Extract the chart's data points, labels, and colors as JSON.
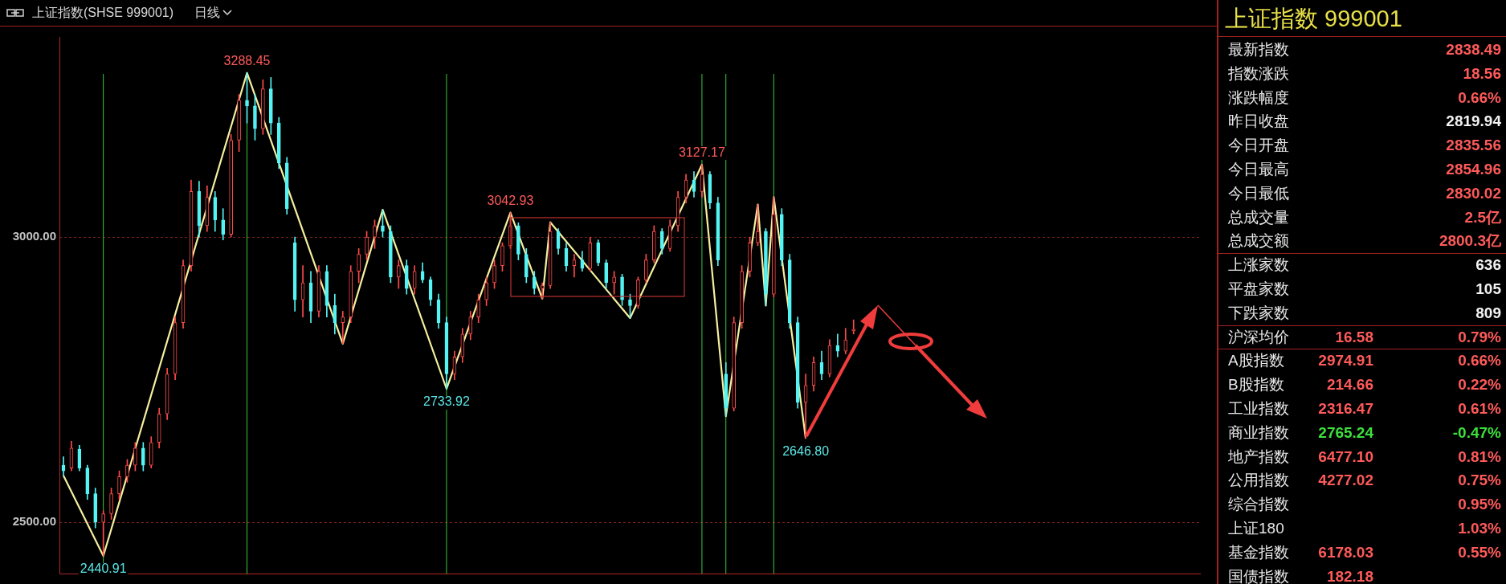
{
  "chart_data": [
    {
      "type": "candlestick",
      "title": "上证指数(SHSE 999001)",
      "subtitle": "日线",
      "categories": [
        null,
        null,
        null,
        null,
        null,
        null,
        null,
        null,
        null,
        null,
        null,
        null,
        null,
        null,
        null,
        null,
        null,
        null,
        null,
        null,
        null,
        null,
        null,
        null,
        null,
        null,
        null,
        null,
        null,
        null,
        null,
        null,
        null,
        null,
        null,
        null,
        null,
        null,
        null,
        null,
        null,
        null,
        null,
        null,
        null,
        null,
        null,
        null,
        null,
        null,
        null,
        null,
        null,
        null,
        null,
        null,
        null,
        null,
        null,
        null,
        null,
        null,
        null,
        null,
        null,
        null,
        null,
        null,
        null,
        null,
        null,
        null,
        null,
        null,
        null,
        null,
        null,
        null,
        null,
        null,
        null,
        null,
        null,
        null,
        null,
        null,
        null,
        null,
        null,
        null,
        null,
        null,
        null,
        null,
        null,
        null,
        null,
        null,
        null,
        null,
        null,
        null,
        null,
        null,
        null,
        null,
        null,
        null,
        null,
        null,
        null,
        null,
        null,
        null,
        null,
        null,
        null,
        null,
        null,
        null,
        null,
        null,
        null,
        null,
        null,
        null,
        null,
        null,
        null,
        null,
        null,
        null,
        null,
        null,
        null,
        null,
        null,
        null,
        null,
        null,
        null,
        null,
        null
      ],
      "ohlc": [
        [
          2600,
          2615,
          2582,
          2590
        ],
        [
          2595,
          2642,
          2590,
          2630
        ],
        [
          2628,
          2635,
          2590,
          2595
        ],
        [
          2595,
          2600,
          2540,
          2550
        ],
        [
          2550,
          2560,
          2490,
          2500
        ],
        [
          2500,
          2520,
          2440.91,
          2515
        ],
        [
          2515,
          2560,
          2505,
          2550
        ],
        [
          2550,
          2590,
          2540,
          2580
        ],
        [
          2580,
          2610,
          2570,
          2600
        ],
        [
          2600,
          2640,
          2590,
          2630
        ],
        [
          2630,
          2640,
          2590,
          2600
        ],
        [
          2600,
          2650,
          2595,
          2640
        ],
        [
          2640,
          2700,
          2630,
          2690
        ],
        [
          2690,
          2770,
          2680,
          2760
        ],
        [
          2760,
          2860,
          2750,
          2850
        ],
        [
          2850,
          2960,
          2840,
          2950
        ],
        [
          2950,
          3100,
          2940,
          3080
        ],
        [
          3080,
          3098,
          3000,
          3020
        ],
        [
          3020,
          3090,
          3010,
          3070
        ],
        [
          3070,
          3080,
          3010,
          3030
        ],
        [
          3030,
          3050,
          2995,
          3005
        ],
        [
          3005,
          3180,
          3000,
          3170
        ],
        [
          3170,
          3250,
          3150,
          3240
        ],
        [
          3240,
          3288.45,
          3200,
          3230
        ],
        [
          3230,
          3250,
          3170,
          3190
        ],
        [
          3190,
          3276,
          3180,
          3260
        ],
        [
          3260,
          3280,
          3180,
          3200
        ],
        [
          3200,
          3210,
          3120,
          3130
        ],
        [
          3130,
          3140,
          3040,
          3050
        ],
        [
          2990,
          3000,
          2870,
          2890
        ],
        [
          2890,
          2950,
          2860,
          2920
        ],
        [
          2920,
          2940,
          2850,
          2870
        ],
        [
          2870,
          2950,
          2860,
          2940
        ],
        [
          2940,
          2950,
          2860,
          2880
        ],
        [
          2880,
          2900,
          2830,
          2850
        ],
        [
          2850,
          2870,
          2813,
          2860
        ],
        [
          2860,
          2950,
          2850,
          2940
        ],
        [
          2940,
          2980,
          2920,
          2970
        ],
        [
          2970,
          3010,
          2960,
          3000
        ],
        [
          3000,
          3030,
          2980,
          3020
        ],
        [
          3020,
          3048,
          3000,
          3010
        ],
        [
          3010,
          3020,
          2920,
          2930
        ],
        [
          2930,
          2960,
          2910,
          2950
        ],
        [
          2950,
          2960,
          2900,
          2910
        ],
        [
          2910,
          2950,
          2900,
          2940
        ],
        [
          2940,
          2955,
          2920,
          2925
        ],
        [
          2925,
          2930,
          2880,
          2890
        ],
        [
          2890,
          2900,
          2840,
          2850
        ],
        [
          2850,
          2860,
          2733.92,
          2760
        ],
        [
          2760,
          2800,
          2750,
          2790
        ],
        [
          2790,
          2840,
          2780,
          2830
        ],
        [
          2830,
          2870,
          2820,
          2860
        ],
        [
          2860,
          2900,
          2850,
          2890
        ],
        [
          2890,
          2930,
          2880,
          2920
        ],
        [
          2920,
          2960,
          2910,
          2950
        ],
        [
          2950,
          2990,
          2940,
          2985
        ],
        [
          2985,
          3042.93,
          2980,
          3020
        ],
        [
          3020,
          3025,
          2960,
          2970
        ],
        [
          2970,
          2980,
          2920,
          2930
        ],
        [
          2930,
          2940,
          2900,
          2910
        ],
        [
          2910,
          2920,
          2892,
          2915
        ],
        [
          2915,
          3026,
          2910,
          3010
        ],
        [
          3010,
          3015,
          2970,
          2980
        ],
        [
          2980,
          2990,
          2940,
          2950
        ],
        [
          2950,
          2970,
          2930,
          2960
        ],
        [
          2960,
          2975,
          2940,
          2945
        ],
        [
          2945,
          3000,
          2940,
          2990
        ],
        [
          2990,
          2995,
          2950,
          2955
        ],
        [
          2955,
          2960,
          2910,
          2920
        ],
        [
          2920,
          2940,
          2900,
          2930
        ],
        [
          2930,
          2935,
          2880,
          2890
        ],
        [
          2890,
          2900,
          2858,
          2880
        ],
        [
          2880,
          2930,
          2875,
          2925
        ],
        [
          2925,
          2970,
          2920,
          2960
        ],
        [
          2960,
          3020,
          2955,
          3010
        ],
        [
          3010,
          3015,
          2970,
          2980
        ],
        [
          2980,
          3030,
          2975,
          3020
        ],
        [
          3020,
          3080,
          3010,
          3070
        ],
        [
          3070,
          3110,
          3060,
          3100
        ],
        [
          3100,
          3115,
          3070,
          3080
        ],
        [
          3080,
          3127.17,
          3070,
          3110
        ],
        [
          3110,
          3115,
          3050,
          3060
        ],
        [
          3060,
          3070,
          2950,
          2960
        ],
        [
          2760,
          2780,
          2686,
          2700
        ],
        [
          2700,
          2860,
          2695,
          2850
        ],
        [
          2850,
          2950,
          2840,
          2940
        ],
        [
          2940,
          3000,
          2930,
          2990
        ],
        [
          2990,
          3057,
          2985,
          3010
        ],
        [
          3010,
          3015,
          2880,
          2900
        ],
        [
          2900,
          3070,
          2895,
          3040
        ],
        [
          3040,
          3050,
          2950,
          2960
        ],
        [
          2960,
          2970,
          2840,
          2850
        ],
        [
          2850,
          2860,
          2700,
          2710
        ],
        [
          2710,
          2760,
          2646.8,
          2740
        ],
        [
          2740,
          2790,
          2730,
          2780
        ],
        [
          2780,
          2800,
          2750,
          2760
        ],
        [
          2760,
          2820,
          2755,
          2810
        ],
        [
          2810,
          2830,
          2790,
          2800
        ],
        [
          2800,
          2840,
          2795,
          2819.94
        ],
        [
          2835.56,
          2854.96,
          2830.02,
          2838.49
        ],
        null,
        null,
        null,
        null,
        null,
        null,
        null,
        null,
        null,
        null,
        null,
        null,
        null,
        null,
        null,
        null,
        null,
        null,
        null,
        null,
        null,
        null,
        null,
        null,
        null,
        null,
        null,
        null,
        null,
        null,
        null,
        null,
        null,
        null,
        null,
        null,
        null,
        null,
        null,
        null,
        null,
        null,
        null
      ],
      "series": [
        {
          "type": "line",
          "color": "#f5f0a0",
          "values": [
            2582,
            null,
            null,
            null,
            null,
            2441,
            null,
            null,
            null,
            null,
            null,
            null,
            null,
            null,
            null,
            null,
            null,
            null,
            null,
            null,
            null,
            null,
            null,
            3288,
            null,
            null,
            null,
            null,
            null,
            null,
            null,
            null,
            null,
            null,
            null,
            2813,
            null,
            null,
            null,
            null,
            3048,
            null,
            null,
            null,
            null,
            null,
            null,
            null,
            2734,
            null,
            null,
            null,
            null,
            null,
            null,
            null,
            3043,
            null,
            null,
            null,
            2892,
            3026,
            null,
            null,
            null,
            null,
            null,
            null,
            null,
            null,
            null,
            2858,
            null,
            null,
            null,
            null,
            null,
            null,
            null,
            null,
            3127,
            null,
            null,
            2686,
            null,
            null,
            null,
            3057,
            2880,
            3070,
            null,
            null,
            null,
            2647,
            null,
            null,
            null,
            null,
            null,
            null,
            null,
            null,
            null,
            null,
            null,
            null,
            null,
            null,
            null,
            null,
            null,
            null,
            null,
            null,
            null,
            null,
            null,
            null,
            null,
            null,
            null,
            null,
            null,
            null,
            null,
            null,
            null,
            null,
            null,
            null,
            null,
            null,
            null,
            null,
            null,
            null,
            null,
            null,
            null,
            null,
            null,
            null,
            null
          ]
        }
      ],
      "ylim": [
        2410,
        3351
      ],
      "yticks": [
        {
          "value": 3000,
          "label": "3000.00"
        },
        {
          "value": 2500,
          "label": "2500.00"
        }
      ],
      "grid": "y",
      "tick_labels": "y",
      "annotations": [
        {
          "text": "3288.45",
          "y": 3288.45
        },
        {
          "text": "2440.91",
          "y": 2440.91
        },
        {
          "text": "2733.92",
          "y": 2733.92
        },
        {
          "text": "3042.93",
          "y": 3042.93
        },
        {
          "text": "3127.17",
          "y": 3127.17
        },
        {
          "text": "2646.80",
          "y": 2646.8
        }
      ]
    },
    {
      "type": "other",
      "title": "上证指数 999001",
      "annotations": [
        "最新指数",
        "2838.49",
        "指数涨跌",
        "18.56",
        "涨跌幅度",
        "0.66%",
        "昨日收盘",
        "2819.94",
        "今日开盘",
        "2835.56",
        "今日最高",
        "2854.96",
        "今日最低",
        "2830.02",
        "总成交量",
        "2.5亿",
        "总成交额",
        "2800.3亿",
        "上涨家数",
        "636",
        "平盘家数",
        "105",
        "下跌家数",
        "809",
        "沪深均价",
        "16.58",
        "0.79%",
        "A股指数",
        "2974.91",
        "0.66%",
        "B股指数",
        "214.66",
        "0.22%",
        "工业指数",
        "2316.47",
        "0.61%",
        "商业指数",
        "2765.24",
        "-0.47%",
        "地产指数",
        "6477.10",
        "0.81%",
        "公用指数",
        "4277.02",
        "0.75%",
        "综合指数",
        "0.95%",
        "上证180",
        "1.03%",
        "基金指数",
        "6178.03",
        "0.55%",
        "国债指数",
        "182.18"
      ]
    }
  ]
}
